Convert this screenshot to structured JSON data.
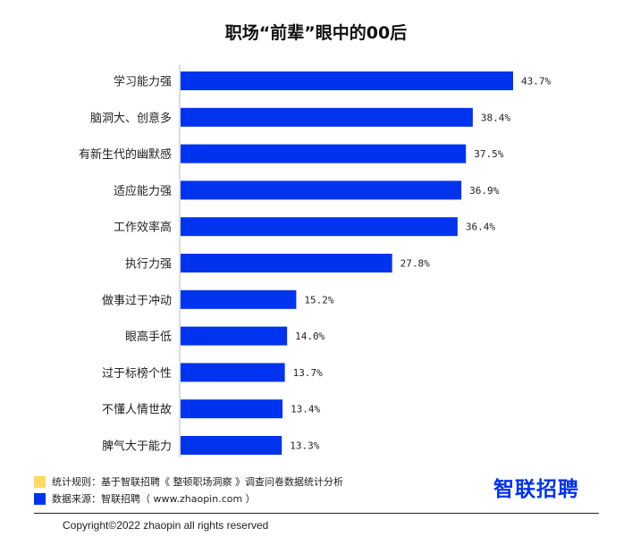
{
  "chart_data": {
    "type": "bar",
    "orientation": "horizontal",
    "title": "职场“前辈”眼中的00后",
    "categories": [
      "学习能力强",
      "脑洞大、创意多",
      "有新生代的幽默感",
      "适应能力强",
      "工作效率高",
      "执行力强",
      "做事过于冲动",
      "眼高手低",
      "过于标榜个性",
      "不懂人情世故",
      "脾气大于能力"
    ],
    "values": [
      43.7,
      38.4,
      37.5,
      36.9,
      36.4,
      27.8,
      15.2,
      14.0,
      13.7,
      13.4,
      13.3
    ],
    "value_labels": [
      "43.7%",
      "38.4%",
      "37.5%",
      "36.9%",
      "36.4%",
      "27.8%",
      "15.2%",
      "14.0%",
      "13.7%",
      "13.4%",
      "13.3%"
    ],
    "xlabel": "",
    "ylabel": "",
    "xlim": [
      0,
      50
    ],
    "grid": false,
    "bar_color": "#0033ee"
  },
  "notes": [
    {
      "text": "统计规则：基于智联招聘《 整顿职场洞察 》调查问卷数据统计分析",
      "color": "#ffd966"
    },
    {
      "text": "数据来源：智联招聘（ www.zhaopin.com ）",
      "color": "#0033ee"
    }
  ],
  "brand": {
    "text": "智联招聘",
    "color": "#0033ee"
  },
  "copyright": "Copyright©2022 zhaopin all rights reserved"
}
